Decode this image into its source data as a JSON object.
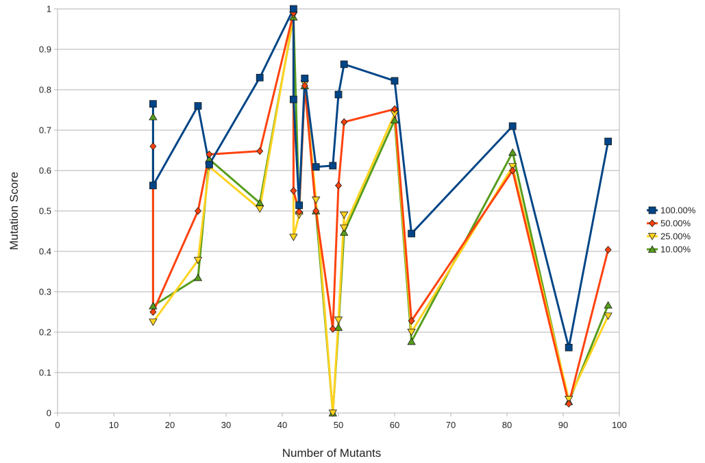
{
  "chart_data": {
    "type": "line",
    "title": "",
    "xlabel": "Number of Mutants",
    "ylabel": "Mutation Score",
    "xlim": [
      0,
      100
    ],
    "ylim": [
      0,
      1
    ],
    "xticks": [
      0,
      10,
      20,
      30,
      40,
      50,
      60,
      70,
      80,
      90,
      100
    ],
    "yticks": [
      0,
      0.1,
      0.2,
      0.3,
      0.4,
      0.5,
      0.6,
      0.7,
      0.8,
      0.9,
      1
    ],
    "ytick_labels": [
      "0",
      "0.1",
      "0.2",
      "0.3",
      "0.4",
      "0.5",
      "0.6",
      "0.7",
      "0.8",
      "0.9",
      "1"
    ],
    "grid": "horizontal",
    "legend": "right",
    "series": [
      {
        "name": "100.00%",
        "color": "#004586",
        "marker": "square",
        "points": [
          [
            17,
            0.765
          ],
          [
            17,
            0.563
          ],
          [
            25,
            0.76
          ],
          [
            27,
            0.615
          ],
          [
            36,
            0.83
          ],
          [
            42,
            1.0
          ],
          [
            42,
            0.776
          ],
          [
            43,
            0.514
          ],
          [
            44,
            0.828
          ],
          [
            46,
            0.609
          ],
          [
            49,
            0.612
          ],
          [
            50,
            0.788
          ],
          [
            51,
            0.863
          ],
          [
            60,
            0.822
          ],
          [
            63,
            0.444
          ],
          [
            81,
            0.71
          ],
          [
            91,
            0.162
          ],
          [
            98,
            0.672
          ]
        ]
      },
      {
        "name": "50.00%",
        "color": "#ff420e",
        "marker": "diamond",
        "points": [
          [
            17,
            0.66
          ],
          [
            17,
            0.25
          ],
          [
            25,
            0.5
          ],
          [
            27,
            0.64
          ],
          [
            36,
            0.648
          ],
          [
            42,
            0.99
          ],
          [
            42,
            0.55
          ],
          [
            43,
            0.498
          ],
          [
            44,
            0.81
          ],
          [
            46,
            0.5
          ],
          [
            49,
            0.208
          ],
          [
            50,
            0.563
          ],
          [
            51,
            0.72
          ],
          [
            60,
            0.752
          ],
          [
            63,
            0.228
          ],
          [
            81,
            0.6
          ],
          [
            91,
            0.023
          ],
          [
            98,
            0.404
          ]
        ]
      },
      {
        "name": "25.00%",
        "color": "#ffd320",
        "marker": "triangle-down",
        "points": [
          [
            17,
            0.225
          ],
          [
            25,
            0.378
          ],
          [
            27,
            0.61
          ],
          [
            36,
            0.505
          ],
          [
            42,
            0.985
          ],
          [
            42,
            0.435
          ],
          [
            43,
            0.49
          ],
          [
            44,
            0.815
          ],
          [
            46,
            0.527
          ],
          [
            49,
            0.0
          ],
          [
            50,
            0.23
          ],
          [
            51,
            0.49
          ],
          [
            51,
            0.458
          ],
          [
            60,
            0.74
          ],
          [
            63,
            0.2
          ],
          [
            81,
            0.61
          ],
          [
            91,
            0.034
          ],
          [
            98,
            0.24
          ]
        ]
      },
      {
        "name": "10.00%",
        "color": "#579d1c",
        "marker": "triangle-up",
        "points": [
          [
            17,
            0.733
          ],
          [
            17,
            0.265
          ],
          [
            25,
            0.335
          ],
          [
            27,
            0.628
          ],
          [
            36,
            0.52
          ],
          [
            42,
            0.98
          ],
          [
            43,
            0.5
          ],
          [
            44,
            0.81
          ],
          [
            46,
            0.5
          ],
          [
            49,
            0.0
          ],
          [
            50,
            0.212
          ],
          [
            51,
            0.447
          ],
          [
            60,
            0.725
          ],
          [
            63,
            0.177
          ],
          [
            81,
            0.645
          ],
          [
            91,
            0.028
          ],
          [
            98,
            0.267
          ]
        ]
      }
    ]
  }
}
